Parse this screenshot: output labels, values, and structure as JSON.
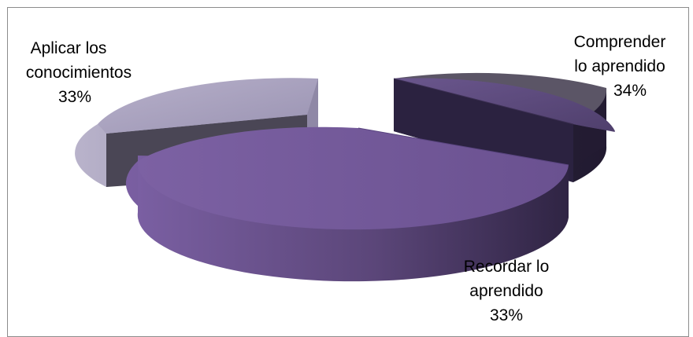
{
  "chart_data": {
    "type": "pie",
    "style": "3d-exploded",
    "title": "",
    "slices": [
      {
        "label_lines": [
          "Comprender",
          "lo aprendido"
        ],
        "value_label": "34%",
        "value": 34,
        "color": "#5e4a80"
      },
      {
        "label_lines": [
          "Recordar lo",
          "aprendido"
        ],
        "value_label": "33%",
        "value": 33,
        "color": "#7a5f9f"
      },
      {
        "label_lines": [
          "Aplicar los",
          "conocimientos"
        ],
        "value_label": "33%",
        "value": 33,
        "color": "#a79fbf"
      }
    ],
    "legend": "none"
  }
}
